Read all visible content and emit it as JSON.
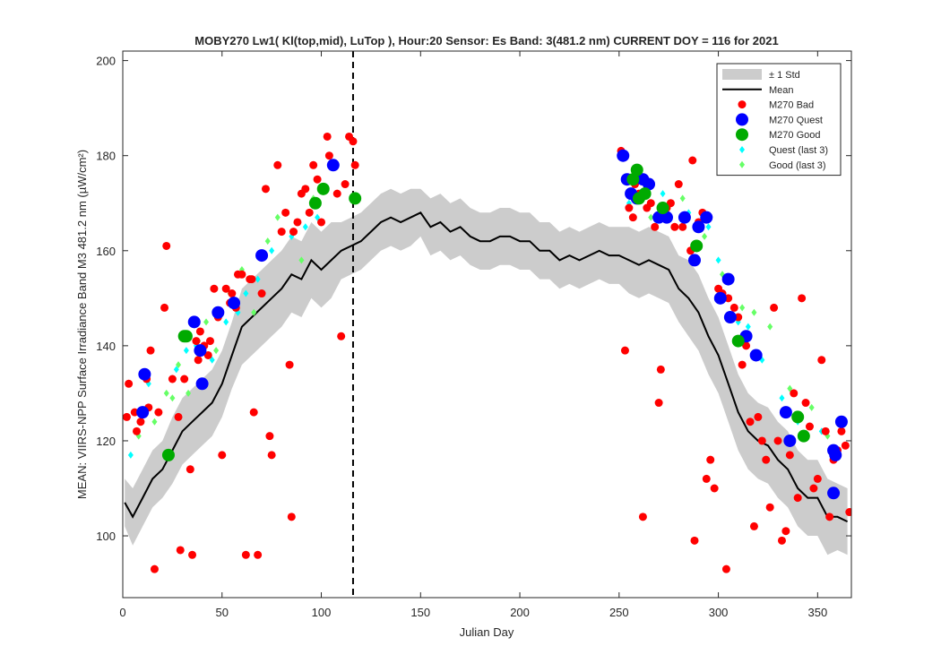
{
  "chart_data": {
    "type": "scatter",
    "title": "MOBY270   Lw1( Kl(top,mid), LuTop ),   Hour:20 Sensor: Es Band: 3(481.2 nm)   CURRENT DOY = 116 for 2021",
    "xlabel": "Julian Day",
    "ylabel": "MEAN: VIIRS-NPP Surface Irradiance Band M3 481.2 nm (µW/cm²)",
    "xlim": [
      0,
      367
    ],
    "ylim": [
      87,
      202
    ],
    "xticks": [
      0,
      50,
      100,
      150,
      200,
      250,
      300,
      350
    ],
    "yticks": [
      100,
      120,
      140,
      160,
      180,
      200
    ],
    "current_doy": 116,
    "grid": false,
    "legend_position": "top-right",
    "colors": {
      "std_band": "#cccccc",
      "mean": "#000000",
      "bad": "#ff0000",
      "quest": "#0000ff",
      "good": "#00aa00",
      "quest_last3": "#00ffff",
      "good_last3": "#66ff66"
    },
    "legend": [
      {
        "label": "± 1 Std",
        "key": "std"
      },
      {
        "label": "Mean",
        "key": "mean"
      },
      {
        "label": "M270 Bad",
        "key": "bad"
      },
      {
        "label": "M270 Quest",
        "key": "quest"
      },
      {
        "label": "M270 Good",
        "key": "good"
      },
      {
        "label": "Quest (last 3)",
        "key": "quest_last3"
      },
      {
        "label": "Good (last 3)",
        "key": "good_last3"
      }
    ],
    "mean_series": {
      "x": [
        1,
        5,
        10,
        15,
        20,
        25,
        30,
        35,
        40,
        45,
        50,
        55,
        60,
        65,
        70,
        75,
        80,
        85,
        90,
        95,
        100,
        105,
        110,
        115,
        120,
        125,
        130,
        135,
        140,
        145,
        150,
        155,
        160,
        165,
        170,
        175,
        180,
        185,
        190,
        195,
        200,
        205,
        210,
        215,
        220,
        225,
        230,
        235,
        240,
        245,
        250,
        255,
        260,
        265,
        270,
        275,
        280,
        285,
        290,
        295,
        300,
        305,
        310,
        315,
        320,
        325,
        330,
        335,
        340,
        345,
        350,
        355,
        360,
        365
      ],
      "y": [
        107,
        104,
        108,
        112,
        114,
        118,
        122,
        124,
        126,
        128,
        132,
        138,
        144,
        146,
        148,
        150,
        152,
        155,
        154,
        158,
        156,
        158,
        160,
        161,
        162,
        164,
        166,
        167,
        166,
        167,
        168,
        165,
        166,
        164,
        165,
        163,
        162,
        162,
        163,
        163,
        162,
        162,
        160,
        160,
        158,
        159,
        158,
        159,
        160,
        159,
        159,
        158,
        157,
        158,
        157,
        156,
        152,
        150,
        147,
        142,
        138,
        132,
        126,
        122,
        120,
        119,
        116,
        114,
        110,
        108,
        108,
        104,
        104,
        103
      ],
      "std": [
        5,
        6,
        6,
        6,
        6,
        7,
        7,
        7,
        7,
        7,
        7,
        7,
        8,
        8,
        8,
        8,
        8,
        8,
        8,
        8,
        8,
        8,
        6,
        6,
        6,
        6,
        6,
        6,
        6,
        6,
        5,
        6,
        6,
        6,
        6,
        6,
        6,
        6,
        6,
        6,
        6,
        6,
        6,
        6,
        6,
        6,
        6,
        6,
        6,
        6,
        6,
        7,
        7,
        7,
        7,
        7,
        7,
        8,
        8,
        8,
        8,
        8,
        8,
        8,
        8,
        8,
        8,
        8,
        8,
        8,
        8,
        8,
        7,
        7
      ]
    },
    "bad": {
      "x": [
        2,
        3,
        6,
        7,
        9,
        12,
        13,
        14,
        16,
        18,
        21,
        22,
        25,
        28,
        29,
        31,
        33,
        34,
        35,
        37,
        38,
        39,
        41,
        43,
        44,
        46,
        48,
        50,
        52,
        54,
        55,
        57,
        58,
        60,
        62,
        64,
        65,
        66,
        68,
        70,
        72,
        74,
        75,
        78,
        80,
        82,
        84,
        85,
        86,
        88,
        90,
        92,
        94,
        96,
        98,
        100,
        101,
        103,
        104,
        106,
        108,
        110,
        112,
        114,
        116,
        117,
        251,
        253,
        255,
        257,
        258,
        260,
        262,
        264,
        266,
        268,
        270,
        271,
        273,
        274,
        276,
        278,
        280,
        282,
        284,
        286,
        287,
        288,
        290,
        292,
        294,
        296,
        298,
        300,
        302,
        304,
        305,
        306,
        308,
        310,
        312,
        314,
        316,
        318,
        320,
        322,
        324,
        326,
        328,
        330,
        332,
        334,
        336,
        338,
        340,
        342,
        344,
        346,
        348,
        350,
        352,
        354,
        356,
        358,
        360,
        362,
        364,
        366
      ],
      "y": [
        125,
        132,
        126,
        122,
        124,
        133,
        127,
        139,
        93,
        126,
        148,
        161,
        133,
        125,
        97,
        133,
        142,
        114,
        96,
        141,
        137,
        143,
        140,
        138,
        141,
        152,
        146,
        117,
        152,
        149,
        151,
        148,
        155,
        155,
        96,
        154,
        154,
        126,
        96,
        151,
        173,
        121,
        117,
        178,
        164,
        168,
        136,
        104,
        164,
        166,
        172,
        173,
        168,
        178,
        175,
        166,
        173,
        184,
        180,
        178,
        172,
        142,
        174,
        184,
        183,
        178,
        181,
        139,
        169,
        167,
        174,
        172,
        104,
        169,
        170,
        165,
        128,
        135,
        168,
        169,
        170,
        165,
        174,
        165,
        167,
        160,
        179,
        99,
        166,
        168,
        112,
        116,
        110,
        152,
        151,
        93,
        150,
        146,
        148,
        146,
        136,
        140,
        124,
        102,
        125,
        120,
        116,
        106,
        148,
        120,
        99,
        101,
        117,
        130,
        108,
        150,
        128,
        123,
        110,
        112,
        137,
        122,
        104,
        116,
        118,
        122,
        119,
        105
      ]
    },
    "quest": {
      "x": [
        10,
        11,
        36,
        39,
        40,
        48,
        56,
        70,
        106,
        252,
        254,
        256,
        259,
        262,
        265,
        270,
        274,
        283,
        288,
        290,
        294,
        301,
        305,
        306,
        314,
        319,
        334,
        336,
        358,
        358,
        359,
        362
      ],
      "y": [
        126,
        134,
        145,
        139,
        132,
        147,
        149,
        159,
        178,
        180,
        175,
        172,
        171,
        175,
        174,
        167,
        167,
        167,
        158,
        165,
        167,
        150,
        154,
        146,
        142,
        138,
        126,
        120,
        118,
        109,
        117,
        124
      ]
    },
    "good": {
      "x": [
        23,
        31,
        32,
        97,
        101,
        117,
        257,
        259,
        260,
        263,
        272,
        289,
        310,
        340,
        343
      ],
      "y": [
        117,
        142,
        142,
        170,
        173,
        171,
        175,
        177,
        171,
        172,
        169,
        161,
        141,
        125,
        121
      ]
    },
    "quest_last3": {
      "x": [
        4,
        13,
        27,
        32,
        37,
        40,
        45,
        52,
        58,
        62,
        68,
        75,
        85,
        92,
        98,
        255,
        272,
        285,
        295,
        300,
        305,
        310,
        315,
        322,
        332,
        340,
        352
      ],
      "y": [
        117,
        132,
        135,
        139,
        140,
        140,
        137,
        145,
        147,
        151,
        154,
        160,
        163,
        165,
        167,
        170,
        172,
        168,
        165,
        158,
        150,
        145,
        144,
        137,
        129,
        124,
        122
      ]
    },
    "good_last3": {
      "x": [
        8,
        16,
        22,
        25,
        28,
        33,
        38,
        42,
        47,
        54,
        60,
        66,
        73,
        78,
        90,
        96,
        266,
        282,
        293,
        302,
        312,
        318,
        326,
        336,
        347,
        355
      ],
      "y": [
        121,
        124,
        130,
        129,
        136,
        130,
        141,
        145,
        139,
        151,
        156,
        147,
        162,
        167,
        158,
        171,
        167,
        171,
        163,
        155,
        148,
        147,
        144,
        131,
        127,
        121
      ]
    }
  }
}
